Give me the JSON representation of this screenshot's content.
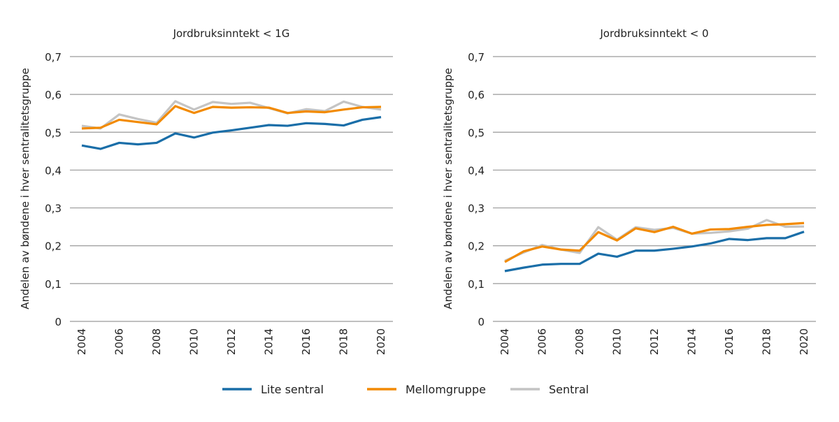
{
  "colors": {
    "Lite sentral": "#1a6ea8",
    "Mellomgruppe": "#f28a00",
    "Sentral": "#c4c4c4",
    "grid": "#9a9a9a"
  },
  "ylabel": "Andelen av bøndene i hver sentralitetsgruppe",
  "legend": [
    "Lite sentral",
    "Mellomgruppe",
    "Sentral"
  ],
  "chart_data": [
    {
      "type": "line",
      "title": "Jordbruksinntekt < 1G",
      "ylabel": "Andelen av bøndene i hver sentralitetsgruppe",
      "ylim": [
        0,
        0.7
      ],
      "yticks": [
        "0",
        "0,1",
        "0,2",
        "0,3",
        "0,4",
        "0,5",
        "0,6",
        "0,7"
      ],
      "xticks": [
        "2004",
        "2006",
        "2008",
        "2010",
        "2012",
        "2014",
        "2016",
        "2018",
        "2020"
      ],
      "x": [
        2004,
        2005,
        2006,
        2007,
        2008,
        2009,
        2010,
        2011,
        2012,
        2013,
        2014,
        2015,
        2016,
        2017,
        2018,
        2019,
        2020
      ],
      "grid": true,
      "legend_position": "bottom",
      "series": [
        {
          "name": "Lite sentral",
          "values": [
            0.465,
            0.456,
            0.472,
            0.468,
            0.472,
            0.497,
            0.486,
            0.499,
            0.505,
            0.512,
            0.519,
            0.517,
            0.524,
            0.522,
            0.518,
            0.533,
            0.54
          ]
        },
        {
          "name": "Mellomgruppe",
          "values": [
            0.51,
            0.512,
            0.533,
            0.527,
            0.521,
            0.569,
            0.551,
            0.567,
            0.565,
            0.566,
            0.565,
            0.551,
            0.555,
            0.553,
            0.56,
            0.566,
            0.567
          ]
        },
        {
          "name": "Sentral",
          "values": [
            0.517,
            0.51,
            0.547,
            0.535,
            0.525,
            0.582,
            0.56,
            0.58,
            0.575,
            0.578,
            0.564,
            0.55,
            0.561,
            0.556,
            0.581,
            0.567,
            0.56
          ]
        }
      ]
    },
    {
      "type": "line",
      "title": "Jordbruksinntekt < 0",
      "ylabel": "Andelen av bøndene i hver sentralitetsgruppe",
      "ylim": [
        0,
        0.7
      ],
      "yticks": [
        "0",
        "0,1",
        "0,2",
        "0,3",
        "0,4",
        "0,5",
        "0,6",
        "0,7"
      ],
      "xticks": [
        "2004",
        "2006",
        "2008",
        "2010",
        "2012",
        "2014",
        "2016",
        "2018",
        "2020"
      ],
      "x": [
        2004,
        2005,
        2006,
        2007,
        2008,
        2009,
        2010,
        2011,
        2012,
        2013,
        2014,
        2015,
        2016,
        2017,
        2018,
        2019,
        2020
      ],
      "grid": true,
      "legend_position": "bottom",
      "series": [
        {
          "name": "Lite sentral",
          "values": [
            0.133,
            0.142,
            0.15,
            0.152,
            0.152,
            0.179,
            0.171,
            0.187,
            0.187,
            0.192,
            0.198,
            0.206,
            0.218,
            0.215,
            0.22,
            0.22,
            0.237
          ]
        },
        {
          "name": "Mellomgruppe",
          "values": [
            0.157,
            0.185,
            0.198,
            0.19,
            0.187,
            0.236,
            0.214,
            0.246,
            0.236,
            0.25,
            0.232,
            0.243,
            0.244,
            0.25,
            0.255,
            0.257,
            0.26
          ]
        },
        {
          "name": "Sentral",
          "values": [
            0.16,
            0.182,
            0.202,
            0.19,
            0.181,
            0.249,
            0.216,
            0.249,
            0.242,
            0.247,
            0.232,
            0.234,
            0.238,
            0.245,
            0.268,
            0.25,
            0.251
          ]
        }
      ]
    }
  ]
}
